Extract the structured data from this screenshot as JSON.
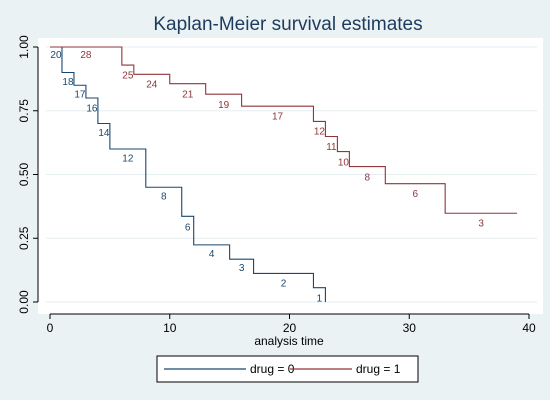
{
  "chart_data": {
    "type": "line",
    "title": "Kaplan-Meier survival estimates",
    "xlabel": "analysis time",
    "ylabel": "",
    "xlim": [
      0,
      40
    ],
    "ylim": [
      0,
      1
    ],
    "xticks": [
      0,
      10,
      20,
      30,
      40
    ],
    "yticks": [
      0,
      0.25,
      0.5,
      0.75,
      1.0
    ],
    "xtick_labels": [
      "0",
      "10",
      "20",
      "30",
      "40"
    ],
    "ytick_labels": [
      "0.00",
      "0.25",
      "0.50",
      "0.75",
      "1.00"
    ],
    "grid": true,
    "legend_position": "bottom",
    "step": true,
    "series": [
      {
        "name": "drug = 0",
        "color": "#1a476f",
        "points": [
          [
            0,
            1.0
          ],
          [
            1,
            1.0
          ],
          [
            1,
            0.9
          ],
          [
            2,
            0.9
          ],
          [
            2,
            0.85
          ],
          [
            3,
            0.85
          ],
          [
            3,
            0.8
          ],
          [
            4,
            0.8
          ],
          [
            4,
            0.7
          ],
          [
            5,
            0.7
          ],
          [
            5,
            0.6
          ],
          [
            8,
            0.6
          ],
          [
            8,
            0.45
          ],
          [
            11,
            0.45
          ],
          [
            11,
            0.336
          ],
          [
            12,
            0.336
          ],
          [
            12,
            0.224
          ],
          [
            15,
            0.224
          ],
          [
            15,
            0.168
          ],
          [
            17,
            0.168
          ],
          [
            17,
            0.112
          ],
          [
            22,
            0.112
          ],
          [
            22,
            0.056
          ],
          [
            23,
            0.056
          ],
          [
            23,
            0
          ]
        ],
        "at_risk": [
          {
            "t": 0.5,
            "s": 0.97,
            "n": "20"
          },
          {
            "t": 1.5,
            "s": 0.865,
            "n": "18"
          },
          {
            "t": 2.5,
            "s": 0.815,
            "n": "17"
          },
          {
            "t": 3.5,
            "s": 0.76,
            "n": "16"
          },
          {
            "t": 4.5,
            "s": 0.665,
            "n": "14"
          },
          {
            "t": 6.5,
            "s": 0.565,
            "n": "12"
          },
          {
            "t": 9.5,
            "s": 0.415,
            "n": "8"
          },
          {
            "t": 11.5,
            "s": 0.295,
            "n": "6"
          },
          {
            "t": 13.5,
            "s": 0.19,
            "n": "4"
          },
          {
            "t": 16.0,
            "s": 0.135,
            "n": "3"
          },
          {
            "t": 19.5,
            "s": 0.075,
            "n": "2"
          },
          {
            "t": 22.5,
            "s": 0.015,
            "n": "1"
          }
        ]
      },
      {
        "name": "drug = 1",
        "color": "#90353b",
        "points": [
          [
            0,
            1.0
          ],
          [
            6,
            1.0
          ],
          [
            6,
            0.929
          ],
          [
            7,
            0.929
          ],
          [
            7,
            0.893
          ],
          [
            10,
            0.893
          ],
          [
            10,
            0.856
          ],
          [
            13,
            0.856
          ],
          [
            13,
            0.815
          ],
          [
            16,
            0.815
          ],
          [
            16,
            0.768
          ],
          [
            22,
            0.768
          ],
          [
            22,
            0.708
          ],
          [
            23,
            0.708
          ],
          [
            23,
            0.649
          ],
          [
            24,
            0.649
          ],
          [
            24,
            0.59
          ],
          [
            25,
            0.59
          ],
          [
            25,
            0.531
          ],
          [
            28,
            0.531
          ],
          [
            28,
            0.464
          ],
          [
            33,
            0.464
          ],
          [
            33,
            0.348
          ],
          [
            39,
            0.348
          ]
        ],
        "at_risk": [
          {
            "t": 3.0,
            "s": 0.97,
            "n": "28"
          },
          {
            "t": 6.5,
            "s": 0.89,
            "n": "25"
          },
          {
            "t": 8.5,
            "s": 0.855,
            "n": "24"
          },
          {
            "t": 11.5,
            "s": 0.815,
            "n": "21"
          },
          {
            "t": 14.5,
            "s": 0.775,
            "n": "19"
          },
          {
            "t": 19.0,
            "s": 0.73,
            "n": "17"
          },
          {
            "t": 22.5,
            "s": 0.67,
            "n": "12"
          },
          {
            "t": 23.5,
            "s": 0.61,
            "n": "11"
          },
          {
            "t": 24.5,
            "s": 0.55,
            "n": "10"
          },
          {
            "t": 26.5,
            "s": 0.49,
            "n": "8"
          },
          {
            "t": 30.5,
            "s": 0.425,
            "n": "6"
          },
          {
            "t": 36.0,
            "s": 0.31,
            "n": "3"
          }
        ]
      }
    ]
  }
}
